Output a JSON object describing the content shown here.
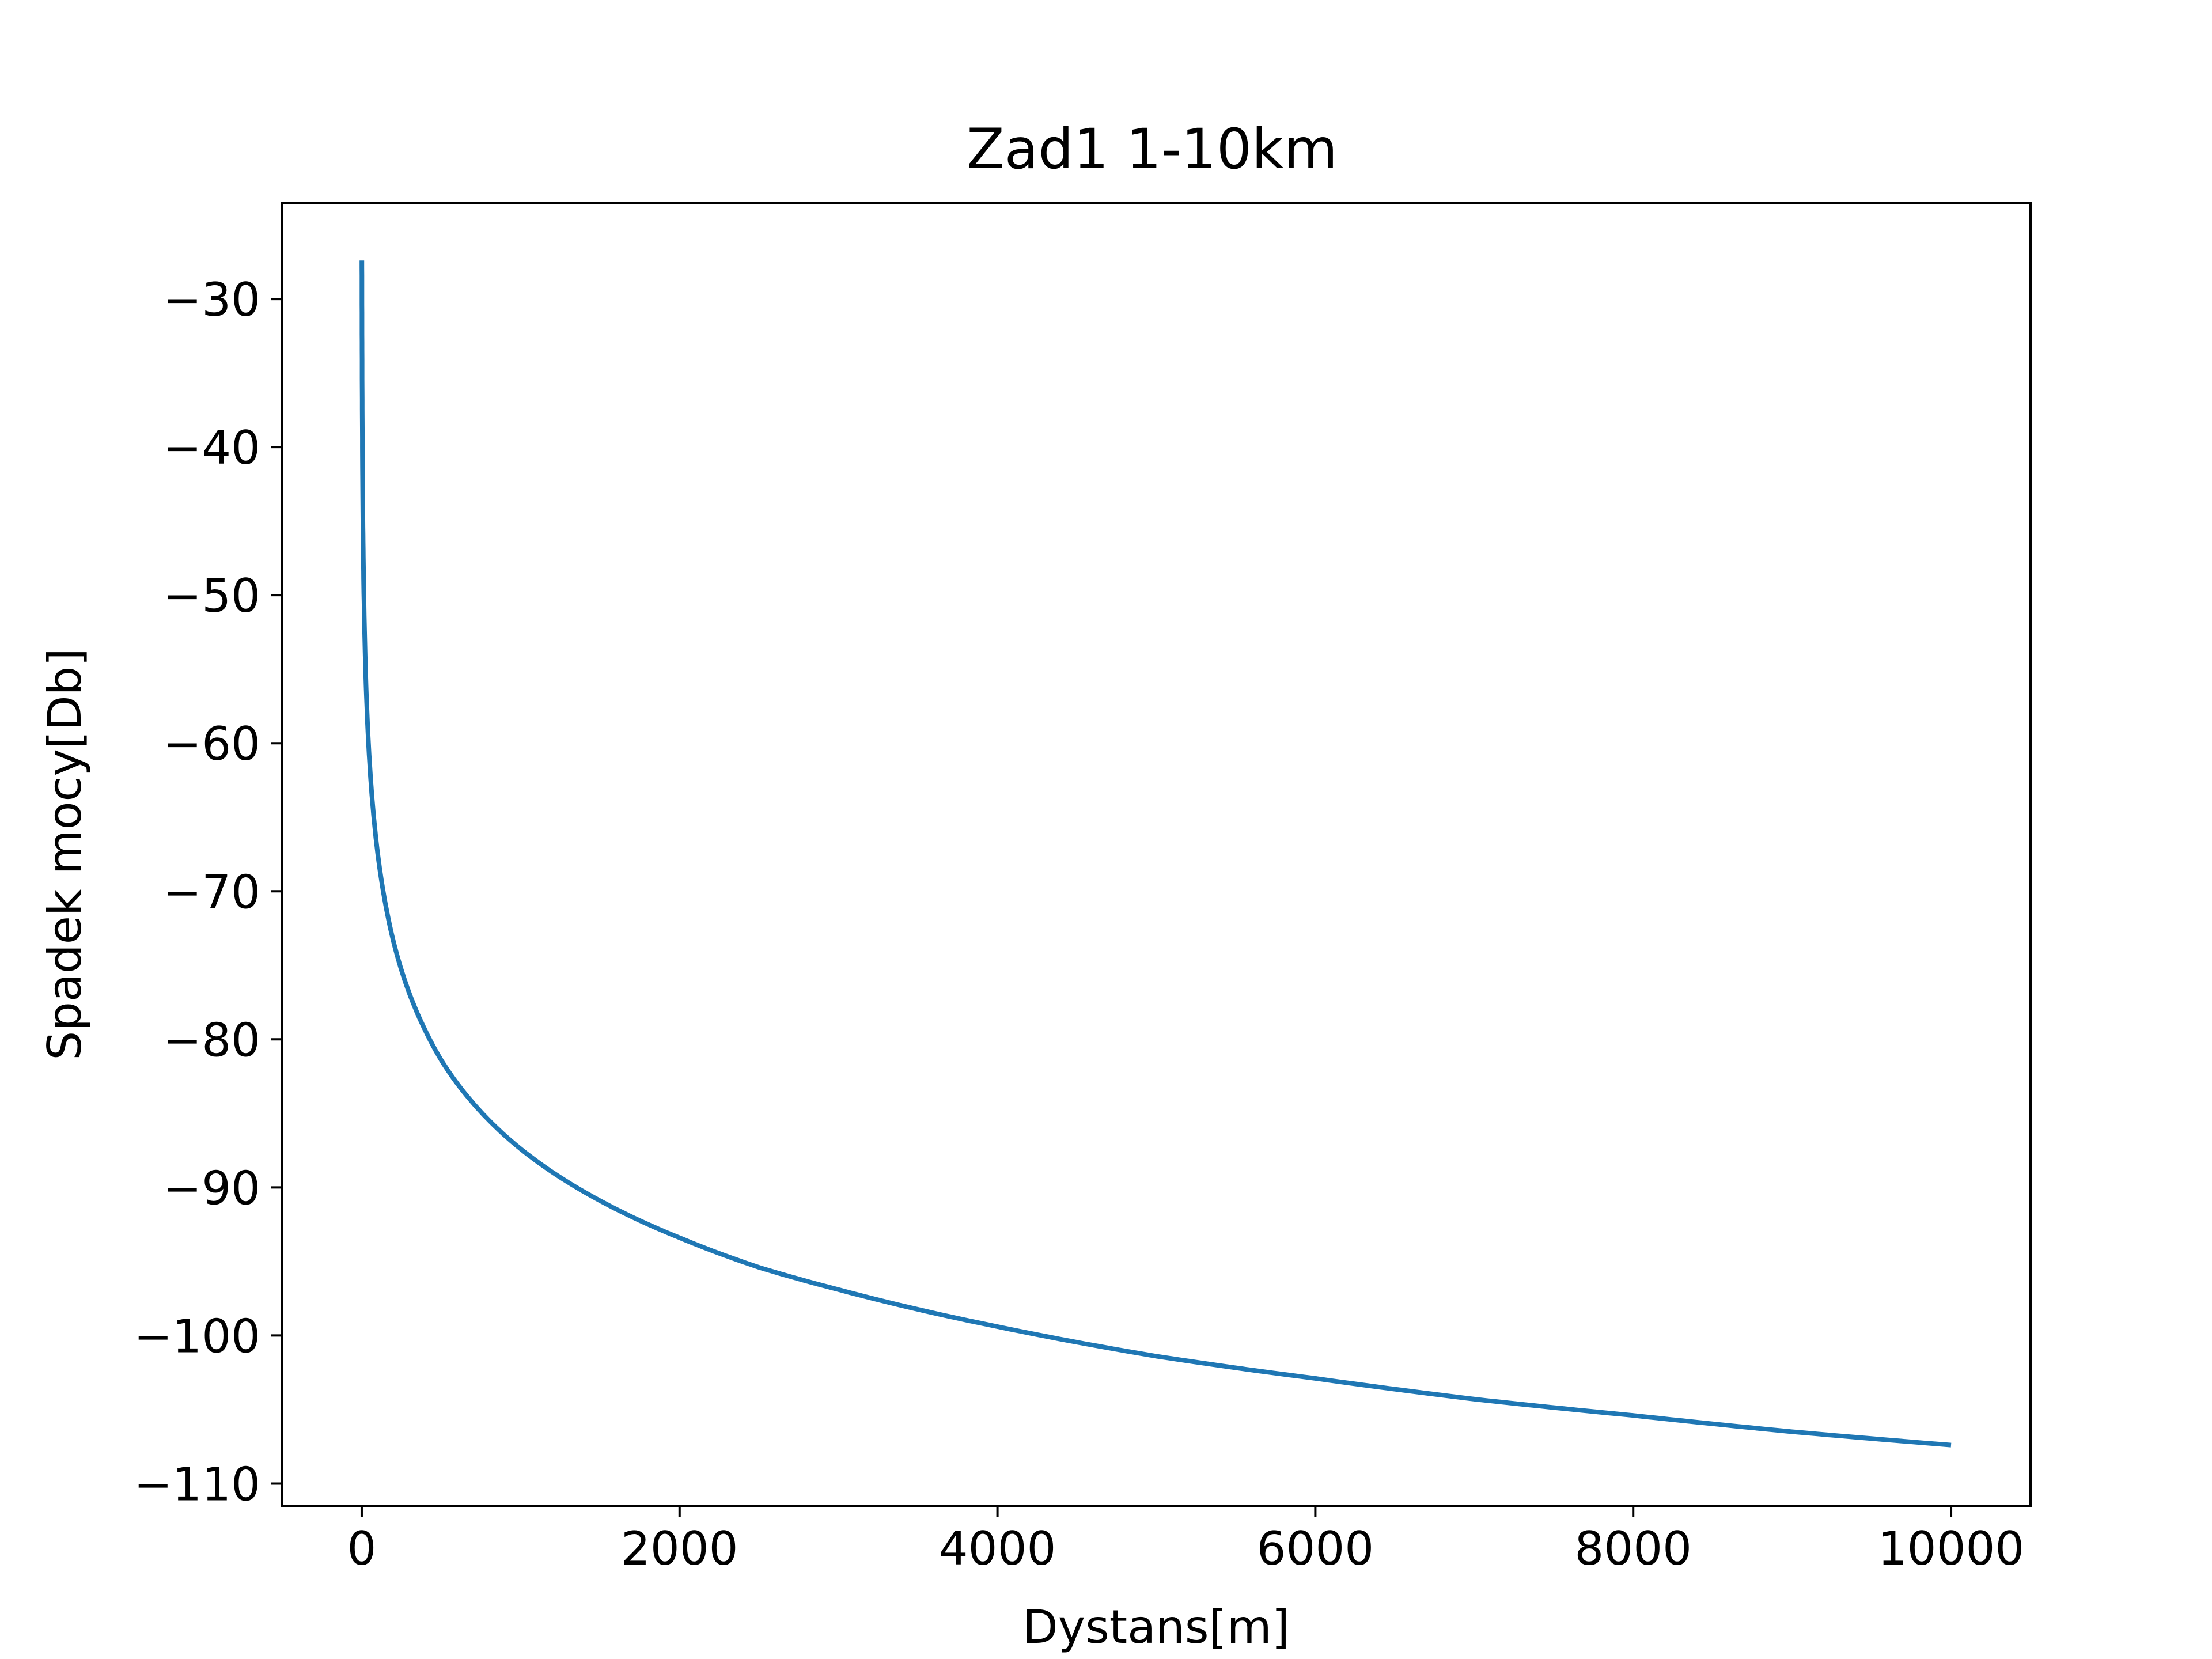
{
  "chart_data": {
    "type": "line",
    "title": "Zad1 1-10km",
    "xlabel": "Dystans[m]",
    "ylabel": "Spadek mocy[Db]",
    "xlim": [
      -500,
      10500
    ],
    "ylim": [
      -111.5,
      -23.5
    ],
    "x_ticks": [
      0,
      2000,
      4000,
      6000,
      8000,
      10000
    ],
    "x_tick_labels": [
      "0",
      "2000",
      "4000",
      "6000",
      "8000",
      "10000"
    ],
    "y_ticks": [
      -30,
      -40,
      -50,
      -60,
      -70,
      -80,
      -90,
      -100,
      -110
    ],
    "y_tick_labels": [
      "−30",
      "−40",
      "−50",
      "−60",
      "−70",
      "−80",
      "−90",
      "−100",
      "−110"
    ],
    "grid": false,
    "legend": "none",
    "series": [
      {
        "color": "#1f77b4",
        "x": [
          1,
          2,
          5,
          10,
          20,
          50,
          100,
          200,
          300,
          400,
          500,
          700,
          1000,
          1500,
          2000,
          2500,
          3000,
          4000,
          5000,
          6000,
          7000,
          8000,
          9000,
          10000
        ],
        "y": [
          -27.4,
          -33.4,
          -41.4,
          -47.4,
          -53.4,
          -61.4,
          -67.4,
          -73.4,
          -76.9,
          -79.4,
          -81.4,
          -84.3,
          -87.4,
          -90.9,
          -93.4,
          -95.4,
          -96.9,
          -99.4,
          -101.4,
          -102.9,
          -104.3,
          -105.4,
          -106.5,
          -107.4
        ]
      }
    ]
  }
}
